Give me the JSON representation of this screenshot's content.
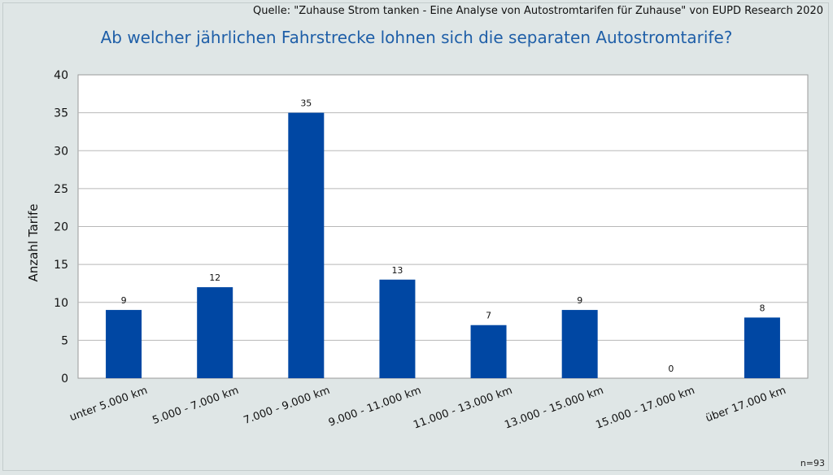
{
  "header": {
    "source": "Quelle:  \"Zuhause Strom tanken - Eine Analyse von Autostromtarifen für Zuhause\" von  EUPD Research 2020",
    "title": "Ab welcher jährlichen Fahrstrecke lohnen sich die separaten Autostromtarife?"
  },
  "footer": {
    "note": "n=93"
  },
  "colors": {
    "bar": "#0047a3",
    "grid": "#b8b8b8",
    "plot_bg": "#ffffff",
    "page_bg": "#dfe6e6"
  },
  "chart_data": {
    "type": "bar",
    "title": "Ab welcher jährlichen Fahrstrecke lohnen sich die separaten Autostromtarife?",
    "xlabel": "",
    "ylabel": "Anzahl Tarife",
    "categories": [
      "unter 5.000 km",
      "5.000 - 7.000 km",
      "7.000 - 9.000 km",
      "9.000 - 11.000 km",
      "11.000 - 13.000 km",
      "13.000 - 15.000 km",
      "15.000 - 17.000 km",
      "über 17.000 km"
    ],
    "values": [
      9,
      12,
      35,
      13,
      7,
      9,
      0,
      8
    ],
    "ylim": [
      0,
      40
    ],
    "yticks": [
      0,
      5,
      10,
      15,
      20,
      25,
      30,
      35,
      40
    ],
    "grid": true,
    "data_labels": true
  }
}
